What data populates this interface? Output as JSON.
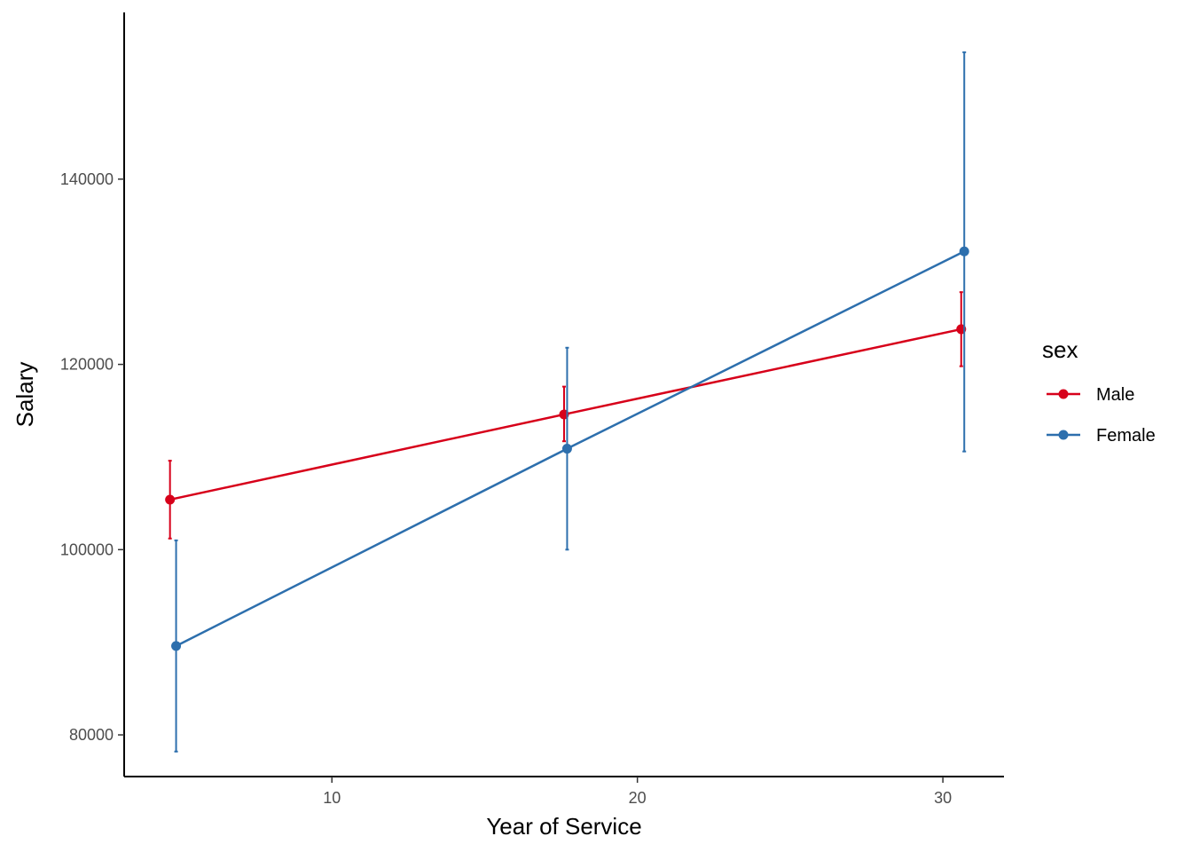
{
  "chart_data": {
    "type": "line",
    "xlabel": "Year of Service",
    "ylabel": "Salary",
    "x_ticks": [
      10,
      20,
      30
    ],
    "y_ticks": [
      80000,
      100000,
      120000,
      140000
    ],
    "xlim": [
      3.2,
      32
    ],
    "ylim": [
      75500,
      158000
    ],
    "grid": false,
    "error_bars": true,
    "legend": {
      "title": "sex",
      "position": "right"
    },
    "series": [
      {
        "name": "Male",
        "color": "#d7001a",
        "points": [
          {
            "x": 4.7,
            "y": 105400,
            "ymin": 101200,
            "ymax": 109600
          },
          {
            "x": 17.6,
            "y": 114600,
            "ymin": 111700,
            "ymax": 117600
          },
          {
            "x": 30.6,
            "y": 123800,
            "ymin": 119800,
            "ymax": 127800
          }
        ]
      },
      {
        "name": "Female",
        "color": "#2d6fad",
        "points": [
          {
            "x": 4.9,
            "y": 89600,
            "ymin": 78200,
            "ymax": 101000
          },
          {
            "x": 17.7,
            "y": 110900,
            "ymin": 100000,
            "ymax": 121800
          },
          {
            "x": 30.7,
            "y": 132200,
            "ymin": 110600,
            "ymax": 153700
          }
        ]
      }
    ]
  }
}
